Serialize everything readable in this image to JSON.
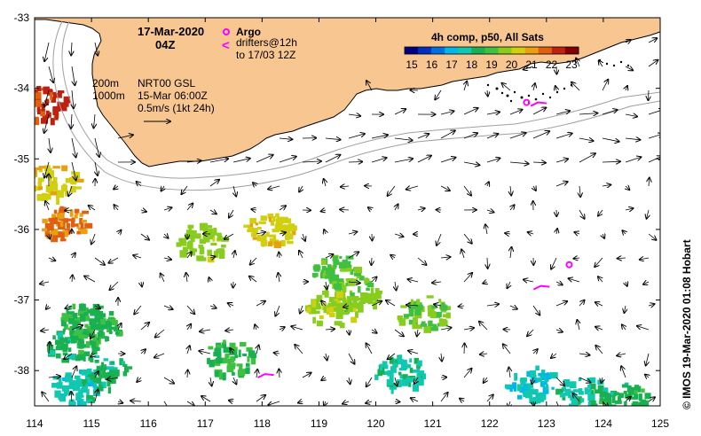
{
  "header": {
    "date": "17-Mar-2020",
    "time": "04Z"
  },
  "argo": {
    "label": "Argo",
    "drifters_line1": "drifters@12h",
    "drifters_line2": "to 17/03 12Z",
    "drifter_symbol": "<"
  },
  "colorbar": {
    "title": "4h comp, p50, All Sats",
    "ticks": [
      "15",
      "16",
      "17",
      "18",
      "19",
      "20",
      "21",
      "22",
      "23"
    ],
    "colors": [
      "#00007f",
      "#0030c0",
      "#0070e0",
      "#00b8e8",
      "#10c8b0",
      "#18b050",
      "#40c040",
      "#88cc20",
      "#d0d010",
      "#e8a010",
      "#e06010",
      "#c02010",
      "#800000"
    ]
  },
  "isobaths": {
    "shallow": "200m",
    "deep": "1000m"
  },
  "currents": {
    "source": "NRT00 GSL",
    "date": "15-Mar 06:00Z",
    "scale": "0.5m/s (1kt 24h)"
  },
  "axes": {
    "lon_labels": [
      "114",
      "115",
      "116",
      "117",
      "118",
      "119",
      "120",
      "121",
      "122",
      "123",
      "124",
      "125"
    ],
    "lat_labels": [
      "-33",
      "-34",
      "-35",
      "-36",
      "-37",
      "-38"
    ],
    "lon_range": [
      114,
      125
    ],
    "lat_range": [
      -33,
      -38.5
    ]
  },
  "credit": "© IMOS 19-Mar-2020 01:08 Hobart",
  "colors": {
    "land": "#f8c690",
    "argo": "#ff00ff",
    "coast": "#000000"
  },
  "sst_patches": [
    {
      "lon": 114.9,
      "lat": -37.25,
      "temp": 18.7
    },
    {
      "lon": 114.6,
      "lat": -37.6,
      "temp": 18.3
    },
    {
      "lon": 115.0,
      "lat": -37.4,
      "temp": 18.5
    },
    {
      "lon": 114.7,
      "lat": -38.2,
      "temp": 17.6
    },
    {
      "lon": 115.2,
      "lat": -38.0,
      "temp": 18.0
    },
    {
      "lon": 117.4,
      "lat": -37.8,
      "temp": 18.6
    },
    {
      "lon": 119.3,
      "lat": -36.6,
      "temp": 19.3
    },
    {
      "lon": 119.6,
      "lat": -36.9,
      "temp": 19.6
    },
    {
      "lon": 119.2,
      "lat": -37.1,
      "temp": 19.8
    },
    {
      "lon": 120.8,
      "lat": -37.15,
      "temp": 19.4
    },
    {
      "lon": 116.9,
      "lat": -36.15,
      "temp": 19.8
    },
    {
      "lon": 122.7,
      "lat": -38.15,
      "temp": 17.4
    },
    {
      "lon": 123.6,
      "lat": -38.3,
      "temp": 17.7
    },
    {
      "lon": 124.3,
      "lat": -38.35,
      "temp": 18.3
    },
    {
      "lon": 114.3,
      "lat": -35.3,
      "temp": 20.5
    },
    {
      "lon": 114.5,
      "lat": -35.9,
      "temp": 21.5
    },
    {
      "lon": 114.1,
      "lat": -34.2,
      "temp": 22.3
    },
    {
      "lon": 118.1,
      "lat": -36.0,
      "temp": 20.5
    },
    {
      "lon": 120.4,
      "lat": -38.0,
      "temp": 17.8
    }
  ],
  "argo_floats": [
    {
      "lon": 123.4,
      "lat": -36.5
    },
    {
      "lon": 122.65,
      "lat": -34.2
    }
  ],
  "drifters": [
    {
      "lon": 118.05,
      "lat": -38.05
    },
    {
      "lon": 122.9,
      "lat": -36.8
    },
    {
      "lon": 122.85,
      "lat": -34.2
    }
  ]
}
